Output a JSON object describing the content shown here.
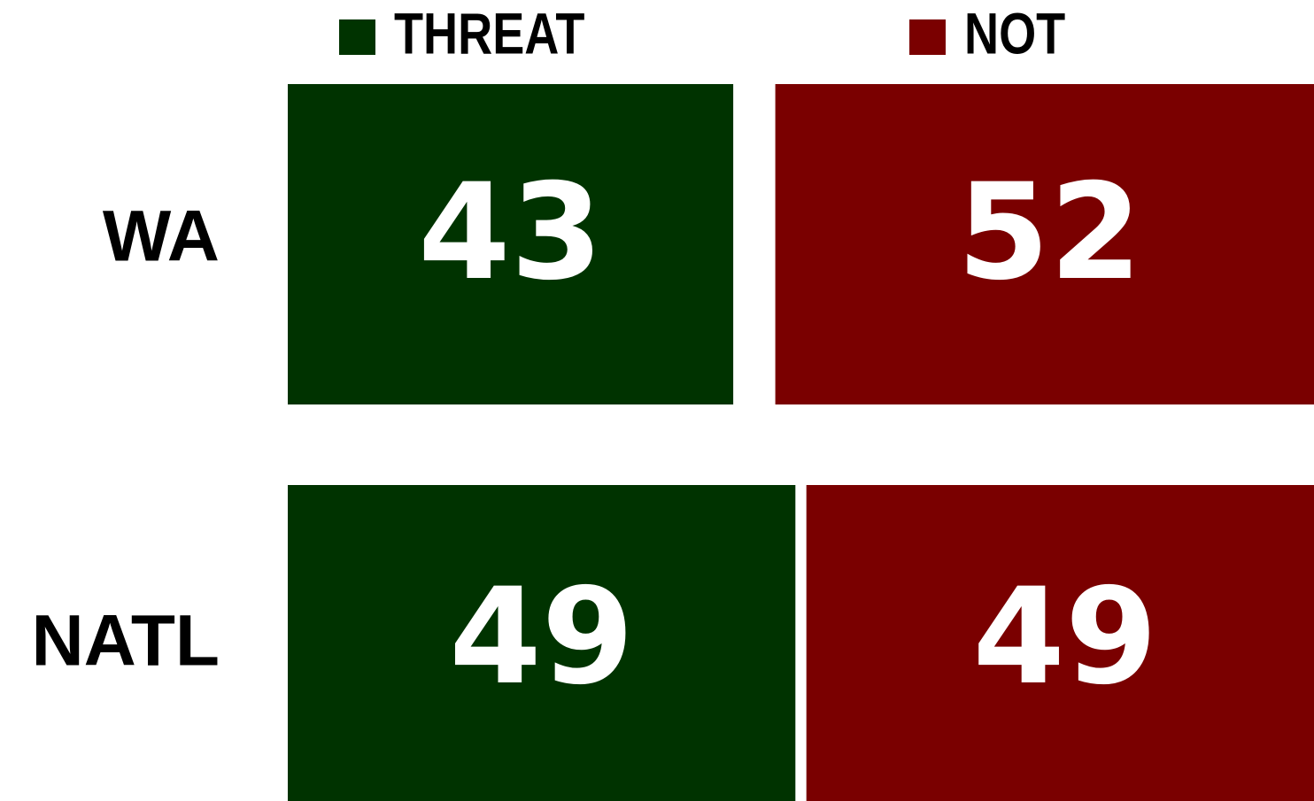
{
  "chart_data": {
    "type": "bar",
    "categories": [
      "WA",
      "NATL"
    ],
    "series": [
      {
        "name": "THREAT",
        "color": "#003300",
        "values": [
          43,
          49
        ]
      },
      {
        "name": "NOT",
        "color": "#7a0000",
        "values": [
          52,
          49
        ]
      }
    ]
  }
}
